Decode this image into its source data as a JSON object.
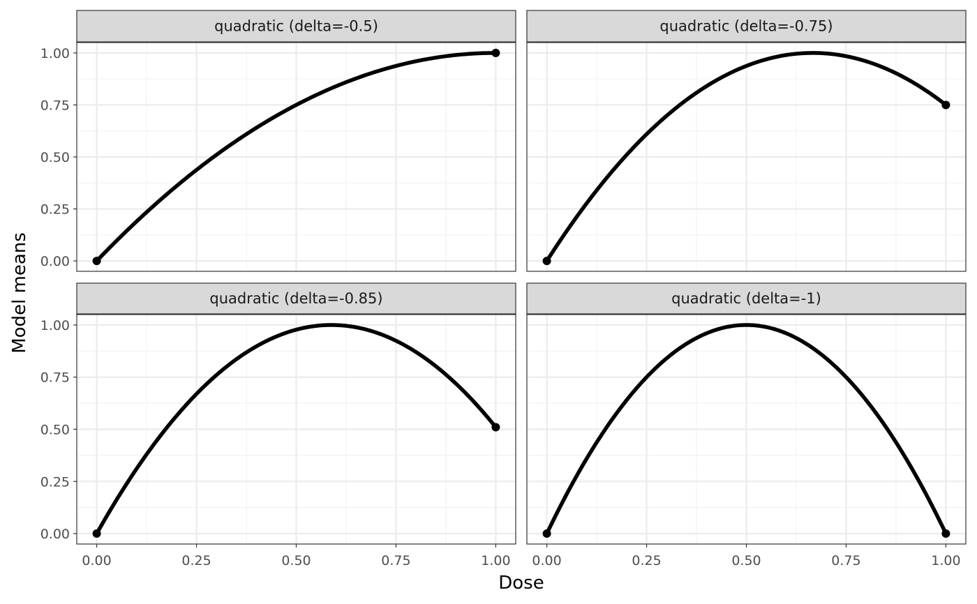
{
  "chart_data": {
    "type": "line",
    "xlabel": "Dose",
    "ylabel": "Model means",
    "xlim": [
      -0.05,
      1.05
    ],
    "ylim": [
      -0.05,
      1.05
    ],
    "x_ticks": [
      "0.00",
      "0.25",
      "0.50",
      "0.75",
      "1.00"
    ],
    "y_ticks": [
      "0.00",
      "0.25",
      "0.50",
      "0.75",
      "1.00"
    ],
    "x_tick_values": [
      0,
      0.25,
      0.5,
      0.75,
      1
    ],
    "y_tick_values": [
      0,
      0.25,
      0.5,
      0.75,
      1
    ],
    "grid": true,
    "line_color": "#000000",
    "strip_fill": "#d9d9d9",
    "panels": [
      {
        "title": "quadratic (delta=-0.5)",
        "delta": -0.5,
        "points": [
          {
            "x": 0,
            "y": 0
          },
          {
            "x": 1,
            "y": 1
          }
        ]
      },
      {
        "title": "quadratic (delta=-0.75)",
        "delta": -0.75,
        "points": [
          {
            "x": 0,
            "y": 0
          },
          {
            "x": 1,
            "y": 0.75
          }
        ]
      },
      {
        "title": "quadratic (delta=-0.85)",
        "delta": -0.85,
        "points": [
          {
            "x": 0,
            "y": 0
          },
          {
            "x": 1,
            "y": 0.51
          }
        ]
      },
      {
        "title": "quadratic (delta=-1)",
        "delta": -1,
        "points": [
          {
            "x": 0,
            "y": 0
          },
          {
            "x": 1,
            "y": 0
          }
        ]
      }
    ]
  }
}
